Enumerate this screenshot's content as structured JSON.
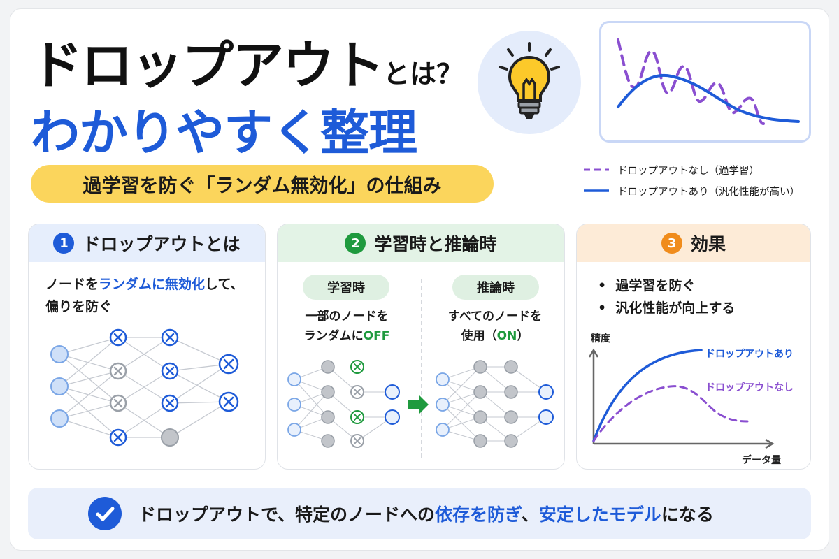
{
  "title": {
    "main": "ドロップアウト",
    "suffix": "とは？",
    "line2": "わかりやすく整理"
  },
  "subtitle_pill": "過学習を防ぐ「ランダム無効化」の仕組み",
  "icons": {
    "bulb": "lightbulb-icon",
    "check": "check-circle-icon"
  },
  "colors": {
    "blue": "#1e5bd8",
    "purple": "#8a4fd0",
    "yellow": "#fbd55c",
    "green": "#1f9a3e",
    "orange": "#f08c1c"
  },
  "legend": {
    "without": "ドロップアウトなし（過学習）",
    "with": "ドロップアウトあり（汎化性能が高い）"
  },
  "panel1": {
    "number": "1",
    "title": "ドロップアウトとは",
    "desc_pre": "ノードを",
    "desc_hl": "ランダムに無効化",
    "desc_post": "して、",
    "desc_line2": "偏りを防ぐ"
  },
  "panel2": {
    "number": "2",
    "title": "学習時と推論時",
    "train_tag": "学習時",
    "infer_tag": "推論時",
    "train_line1": "一部のノードを",
    "train_line2_pre": "ランダムに",
    "train_line2_hl": "OFF",
    "infer_line1": "すべてのノードを",
    "infer_line2_pre": "使用（",
    "infer_line2_hl": "ON",
    "infer_line2_post": "）"
  },
  "panel3": {
    "number": "3",
    "title": "効果",
    "bullets": [
      "過学習を防ぐ",
      "汎化性能が向上する"
    ],
    "ylabel": "精度",
    "xlabel": "データ量",
    "label_with": "ドロップアウトあり",
    "label_without": "ドロップアウトなし"
  },
  "bottom": {
    "pre": "ドロップアウトで、特定のノードへの",
    "hl1": "依存を防ぎ",
    "mid": "、",
    "hl2": "安定したモデル",
    "post": "になる"
  }
}
